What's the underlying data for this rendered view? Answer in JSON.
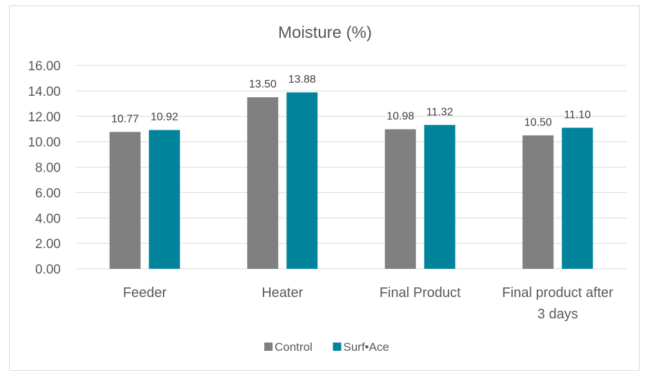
{
  "chart_data": {
    "type": "bar",
    "title": "Moisture (%)",
    "xlabel": "",
    "ylabel": "",
    "categories": [
      "Feeder",
      "Heater",
      "Final Product",
      "Final product after 3 days"
    ],
    "series": [
      {
        "name": "Control",
        "values": [
          10.77,
          13.5,
          10.98,
          10.5
        ],
        "labels": [
          "10.77",
          "13.50",
          "10.98",
          "10.50"
        ],
        "color": "#808080"
      },
      {
        "name": "Surf•Ace",
        "values": [
          10.92,
          13.88,
          11.32,
          11.1
        ],
        "labels": [
          "10.92",
          "13.88",
          "11.32",
          "11.10"
        ],
        "color": "#00839b"
      }
    ],
    "ylim": [
      0,
      16
    ],
    "yticks": [
      "0.00",
      "2.00",
      "4.00",
      "6.00",
      "8.00",
      "10.00",
      "12.00",
      "14.00",
      "16.00"
    ],
    "grid": true,
    "legend_position": "bottom"
  }
}
